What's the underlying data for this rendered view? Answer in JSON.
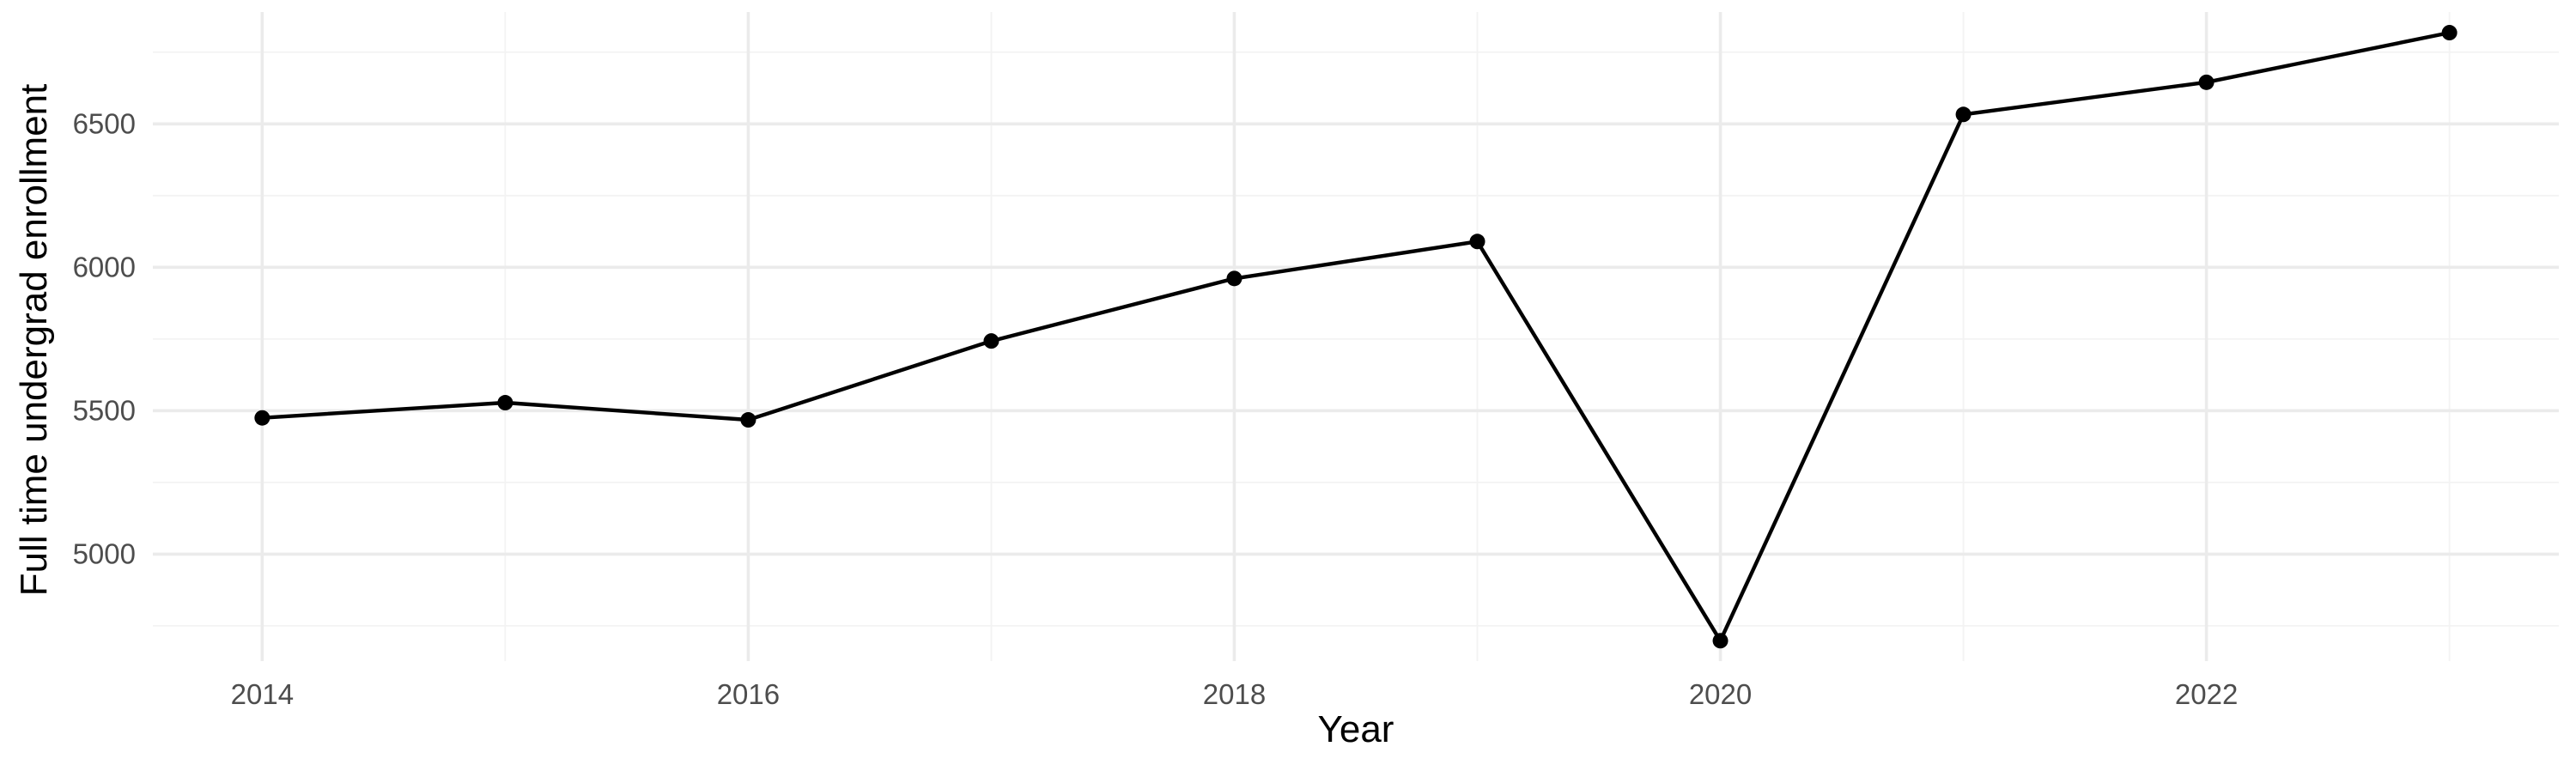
{
  "chart_data": {
    "type": "line",
    "title": "",
    "xlabel": "Year",
    "ylabel": "Full time undergrad enrollment",
    "x": [
      2014,
      2015,
      2016,
      2017,
      2018,
      2019,
      2020,
      2021,
      2022,
      2023
    ],
    "series": [
      {
        "values": [
          5475,
          5528,
          5468,
          5743,
          5961,
          6090,
          4698,
          6533,
          6645,
          6818
        ]
      }
    ],
    "xlim": [
      2013.55,
      2023.45
    ],
    "ylim": [
      4627,
      6890
    ],
    "x_ticks": [
      2014,
      2016,
      2018,
      2020,
      2022
    ],
    "x_tick_labels": [
      "2014",
      "2016",
      "2018",
      "2020",
      "2022"
    ],
    "y_ticks": [
      5000,
      5500,
      6000,
      6500
    ],
    "y_tick_labels": [
      "5000",
      "5500",
      "6000",
      "6500"
    ],
    "x_minor_ticks": [
      2015,
      2017,
      2019,
      2021,
      2023
    ],
    "y_minor_ticks": [
      4750,
      5250,
      5750,
      6250,
      6750
    ],
    "grid": true,
    "legend": "none",
    "colors": {
      "line": "#000000",
      "grid_major": "#ebebeb",
      "grid_minor": "#f3f3f3",
      "tick_text": "#4d4d4d",
      "background": "#ffffff"
    }
  }
}
